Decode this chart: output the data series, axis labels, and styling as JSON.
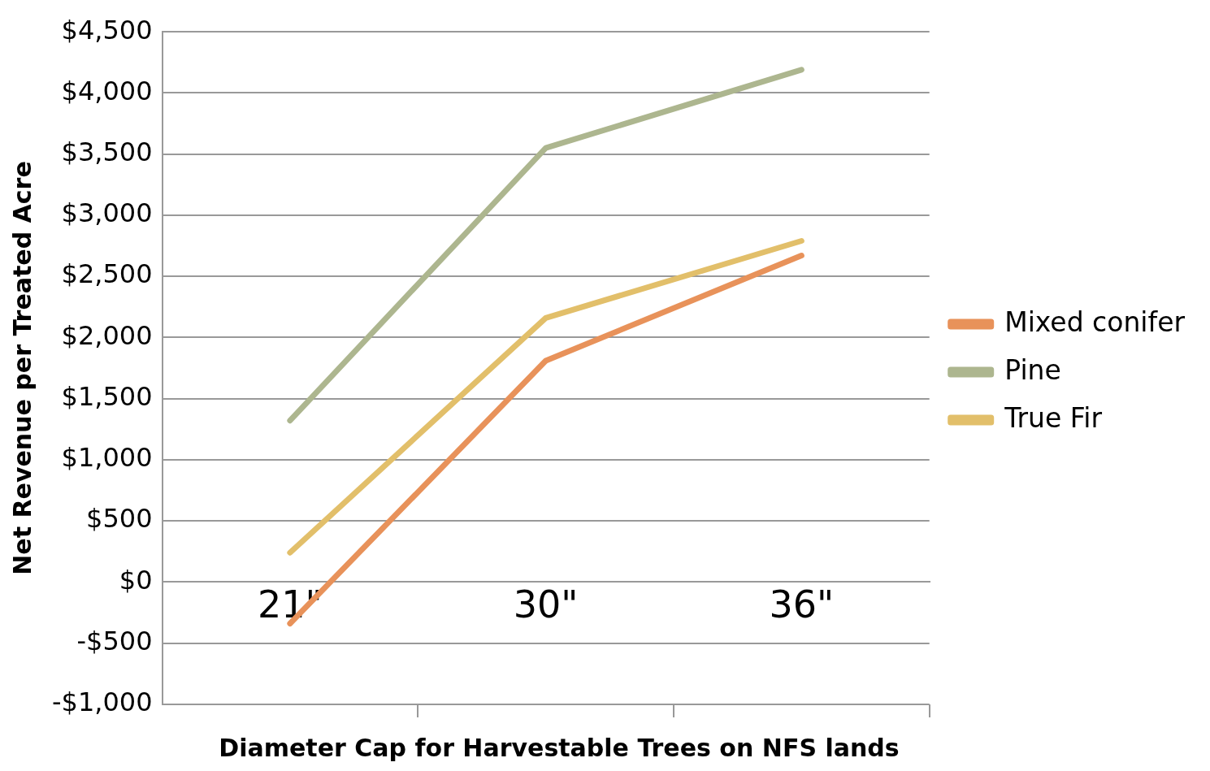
{
  "chart_data": {
    "type": "line",
    "xlabel": "Diameter Cap for Harvestable Trees on NFS lands",
    "ylabel": "Net Revenue per Treated Acre",
    "categories": [
      "21\"",
      "30\"",
      "36\""
    ],
    "series": [
      {
        "name": "Mixed conifer",
        "color": "#e8925a",
        "values": [
          -340,
          1810,
          2670
        ]
      },
      {
        "name": "Pine",
        "color": "#adb68f",
        "values": [
          1320,
          3550,
          4190
        ]
      },
      {
        "name": "True Fir",
        "color": "#e2bf6a",
        "values": [
          240,
          2160,
          2790
        ]
      }
    ],
    "ylim": [
      -1000,
      4500
    ],
    "yticks": [
      {
        "value": -1000,
        "label": "-$1,000"
      },
      {
        "value": -500,
        "label": "-$500"
      },
      {
        "value": 0,
        "label": "$0"
      },
      {
        "value": 500,
        "label": "$500"
      },
      {
        "value": 1000,
        "label": "$1,000"
      },
      {
        "value": 1500,
        "label": "$1,500"
      },
      {
        "value": 2000,
        "label": "$2,000"
      },
      {
        "value": 2500,
        "label": "$2,500"
      },
      {
        "value": 3000,
        "label": "$3,000"
      },
      {
        "value": 3500,
        "label": "$3,500"
      },
      {
        "value": 4000,
        "label": "$4,000"
      },
      {
        "value": 4500,
        "label": "$4,500"
      }
    ],
    "grid": "y",
    "legend": "right",
    "marker": "none",
    "line_style": "solid"
  }
}
